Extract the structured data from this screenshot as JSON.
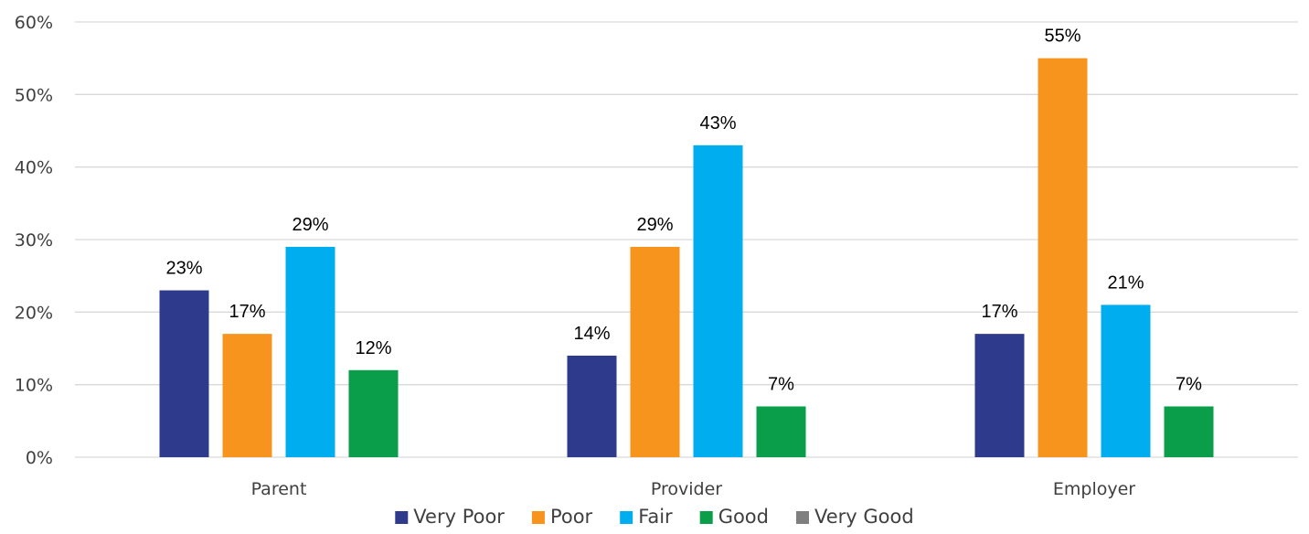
{
  "chart_data": {
    "type": "bar",
    "categories": [
      "Parent",
      "Provider",
      "Employer"
    ],
    "series": [
      {
        "name": "Very Poor",
        "color": "#2e3a8c",
        "values": [
          23,
          14,
          17
        ]
      },
      {
        "name": "Poor",
        "color": "#f7941d",
        "values": [
          17,
          29,
          55
        ]
      },
      {
        "name": "Fair",
        "color": "#00aeef",
        "values": [
          29,
          43,
          21
        ]
      },
      {
        "name": "Good",
        "color": "#0a9e4b",
        "values": [
          12,
          7,
          7
        ]
      },
      {
        "name": "Very Good",
        "color": "#7f7f7f",
        "values": [
          null,
          null,
          null
        ]
      }
    ],
    "data_labels": [
      [
        "23%",
        "14%",
        "17%"
      ],
      [
        "17%",
        "29%",
        "55%"
      ],
      [
        "29%",
        "43%",
        "21%"
      ],
      [
        "12%",
        "7%",
        "7%"
      ],
      [
        null,
        null,
        null
      ]
    ],
    "yticks": [
      "0%",
      "10%",
      "20%",
      "30%",
      "40%",
      "50%",
      "60%"
    ],
    "ylim": [
      0,
      60
    ],
    "value_unit": "%",
    "grid": true,
    "legend_position": "bottom",
    "title": "",
    "xlabel": "",
    "ylabel": ""
  }
}
